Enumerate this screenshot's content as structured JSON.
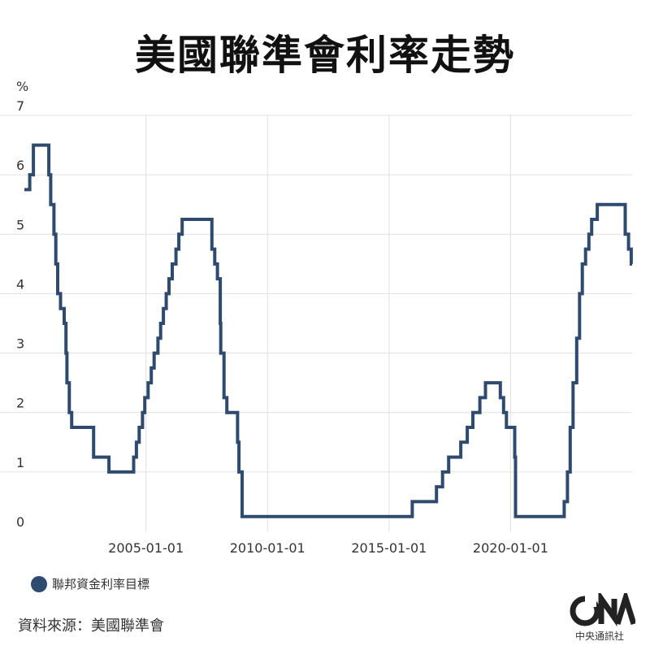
{
  "page": {
    "title": "美國聯準會利率走勢",
    "source": "資料來源：美國聯準會",
    "logo_text": "CNA",
    "logo_sub": "中央通訊社"
  },
  "chart_data": {
    "type": "line",
    "title": "美國聯準會利率走勢",
    "xlabel": "",
    "ylabel": "%",
    "ylim": [
      0,
      7
    ],
    "xlim": [
      "2000-01-01",
      "2024-12-31"
    ],
    "y_ticks": [
      0,
      1,
      2,
      3,
      4,
      5,
      6,
      7
    ],
    "x_ticks": [
      "2005-01-01",
      "2010-01-01",
      "2015-01-01",
      "2020-01-01"
    ],
    "grid": true,
    "legend": "bottom-left",
    "colors": {
      "line": "#2e4a6e",
      "grid": "#e0e0e0"
    },
    "series": [
      {
        "name": "聯邦資金利率目標",
        "step": true,
        "points": [
          [
            "2000-01-01",
            5.75
          ],
          [
            "2000-02-02",
            5.75
          ],
          [
            "2000-03-21",
            6.0
          ],
          [
            "2000-05-16",
            6.5
          ],
          [
            "2001-01-03",
            6.0
          ],
          [
            "2001-01-31",
            5.5
          ],
          [
            "2001-03-20",
            5.0
          ],
          [
            "2001-04-18",
            4.5
          ],
          [
            "2001-05-15",
            4.0
          ],
          [
            "2001-06-27",
            3.75
          ],
          [
            "2001-08-21",
            3.5
          ],
          [
            "2001-09-17",
            3.0
          ],
          [
            "2001-10-02",
            2.5
          ],
          [
            "2001-11-06",
            2.0
          ],
          [
            "2001-12-11",
            1.75
          ],
          [
            "2002-11-06",
            1.25
          ],
          [
            "2003-06-25",
            1.0
          ],
          [
            "2004-06-30",
            1.25
          ],
          [
            "2004-08-10",
            1.5
          ],
          [
            "2004-09-21",
            1.75
          ],
          [
            "2004-11-10",
            2.0
          ],
          [
            "2004-12-14",
            2.25
          ],
          [
            "2005-02-02",
            2.5
          ],
          [
            "2005-03-22",
            2.75
          ],
          [
            "2005-05-03",
            3.0
          ],
          [
            "2005-06-30",
            3.25
          ],
          [
            "2005-08-09",
            3.5
          ],
          [
            "2005-09-20",
            3.75
          ],
          [
            "2005-11-01",
            4.0
          ],
          [
            "2005-12-13",
            4.25
          ],
          [
            "2006-01-31",
            4.5
          ],
          [
            "2006-03-28",
            4.75
          ],
          [
            "2006-05-10",
            5.0
          ],
          [
            "2006-06-29",
            5.25
          ],
          [
            "2007-09-18",
            4.75
          ],
          [
            "2007-10-31",
            4.5
          ],
          [
            "2007-12-11",
            4.25
          ],
          [
            "2008-01-22",
            3.5
          ],
          [
            "2008-01-30",
            3.0
          ],
          [
            "2008-03-18",
            2.25
          ],
          [
            "2008-04-30",
            2.0
          ],
          [
            "2008-10-08",
            1.5
          ],
          [
            "2008-10-29",
            1.0
          ],
          [
            "2008-12-16",
            0.25
          ],
          [
            "2015-12-16",
            0.5
          ],
          [
            "2016-12-14",
            0.75
          ],
          [
            "2017-03-15",
            1.0
          ],
          [
            "2017-06-14",
            1.25
          ],
          [
            "2017-12-13",
            1.5
          ],
          [
            "2018-03-21",
            1.75
          ],
          [
            "2018-06-13",
            2.0
          ],
          [
            "2018-09-26",
            2.25
          ],
          [
            "2018-12-19",
            2.5
          ],
          [
            "2019-07-31",
            2.25
          ],
          [
            "2019-09-18",
            2.0
          ],
          [
            "2019-10-30",
            1.75
          ],
          [
            "2020-03-03",
            1.25
          ],
          [
            "2020-03-15",
            0.25
          ],
          [
            "2022-03-16",
            0.5
          ],
          [
            "2022-05-04",
            1.0
          ],
          [
            "2022-06-15",
            1.75
          ],
          [
            "2022-07-27",
            2.5
          ],
          [
            "2022-09-21",
            3.25
          ],
          [
            "2022-11-02",
            4.0
          ],
          [
            "2022-12-14",
            4.5
          ],
          [
            "2023-02-01",
            4.75
          ],
          [
            "2023-03-22",
            5.0
          ],
          [
            "2023-05-03",
            5.25
          ],
          [
            "2023-07-26",
            5.5
          ],
          [
            "2024-09-18",
            5.0
          ],
          [
            "2024-11-07",
            4.75
          ],
          [
            "2024-12-18",
            4.5
          ],
          [
            "2024-12-31",
            4.5
          ]
        ]
      }
    ]
  }
}
